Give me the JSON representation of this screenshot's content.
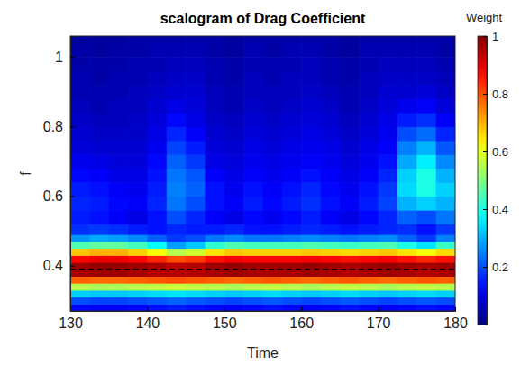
{
  "chart_data": {
    "type": "heatmap",
    "title": "scalogram of Drag Coefficient",
    "x_label": "Time",
    "y_label": "f",
    "xlim": [
      130,
      180
    ],
    "xticks": [
      130,
      140,
      150,
      160,
      170,
      180
    ],
    "ylim": [
      0.27,
      1.06
    ],
    "yticks": [
      0.4,
      0.6,
      0.8,
      1
    ],
    "hline": 0.39,
    "line_style": "dashed",
    "x": [
      131.25,
      133.75,
      136.25,
      138.75,
      141.25,
      143.75,
      146.25,
      148.75,
      151.25,
      153.75,
      156.25,
      158.75,
      161.25,
      163.75,
      166.25,
      168.75,
      171.25,
      173.75,
      176.25,
      178.75
    ],
    "y": [
      0.28,
      0.3,
      0.32,
      0.34,
      0.36,
      0.38,
      0.4,
      0.42,
      0.44,
      0.46,
      0.48,
      0.5,
      0.54,
      0.58,
      0.62,
      0.66,
      0.7,
      0.74,
      0.78,
      0.82,
      0.86,
      0.9,
      0.94,
      0.98,
      1.02,
      1.06
    ],
    "z": [
      [
        0.13,
        0.12,
        0.12,
        0.13,
        0.14,
        0.15,
        0.14,
        0.13,
        0.12,
        0.13,
        0.14,
        0.13,
        0.12,
        0.13,
        0.14,
        0.13,
        0.12,
        0.13,
        0.14,
        0.13
      ],
      [
        0.2,
        0.19,
        0.19,
        0.2,
        0.21,
        0.22,
        0.21,
        0.2,
        0.19,
        0.2,
        0.21,
        0.2,
        0.19,
        0.2,
        0.21,
        0.2,
        0.19,
        0.2,
        0.21,
        0.2
      ],
      [
        0.33,
        0.32,
        0.32,
        0.33,
        0.34,
        0.35,
        0.34,
        0.33,
        0.32,
        0.33,
        0.34,
        0.33,
        0.32,
        0.33,
        0.34,
        0.33,
        0.32,
        0.33,
        0.34,
        0.33
      ],
      [
        0.55,
        0.54,
        0.54,
        0.55,
        0.56,
        0.57,
        0.56,
        0.55,
        0.54,
        0.55,
        0.56,
        0.55,
        0.54,
        0.55,
        0.56,
        0.55,
        0.54,
        0.55,
        0.56,
        0.55
      ],
      [
        0.78,
        0.77,
        0.77,
        0.78,
        0.79,
        0.8,
        0.79,
        0.78,
        0.77,
        0.78,
        0.79,
        0.78,
        0.77,
        0.78,
        0.79,
        0.78,
        0.77,
        0.78,
        0.79,
        0.78
      ],
      [
        0.96,
        0.97,
        0.97,
        0.96,
        0.95,
        0.95,
        0.95,
        0.96,
        0.97,
        0.96,
        0.96,
        0.96,
        0.97,
        0.96,
        0.95,
        0.96,
        0.97,
        0.96,
        0.95,
        0.96
      ],
      [
        0.97,
        0.98,
        0.98,
        0.97,
        0.96,
        0.94,
        0.95,
        0.97,
        0.98,
        0.97,
        0.97,
        0.97,
        0.98,
        0.97,
        0.96,
        0.97,
        0.98,
        0.97,
        0.96,
        0.97
      ],
      [
        0.87,
        0.89,
        0.89,
        0.87,
        0.84,
        0.8,
        0.82,
        0.86,
        0.88,
        0.87,
        0.87,
        0.87,
        0.88,
        0.87,
        0.86,
        0.87,
        0.88,
        0.86,
        0.84,
        0.86
      ],
      [
        0.68,
        0.7,
        0.7,
        0.67,
        0.62,
        0.55,
        0.58,
        0.65,
        0.68,
        0.67,
        0.67,
        0.67,
        0.68,
        0.67,
        0.66,
        0.67,
        0.68,
        0.65,
        0.62,
        0.66
      ],
      [
        0.45,
        0.47,
        0.47,
        0.44,
        0.38,
        0.28,
        0.32,
        0.42,
        0.45,
        0.44,
        0.44,
        0.44,
        0.45,
        0.44,
        0.43,
        0.44,
        0.45,
        0.4,
        0.35,
        0.43
      ],
      [
        0.27,
        0.29,
        0.28,
        0.26,
        0.22,
        0.18,
        0.2,
        0.24,
        0.26,
        0.24,
        0.24,
        0.25,
        0.26,
        0.25,
        0.24,
        0.25,
        0.26,
        0.22,
        0.18,
        0.25
      ],
      [
        0.17,
        0.18,
        0.17,
        0.15,
        0.14,
        0.16,
        0.15,
        0.15,
        0.16,
        0.14,
        0.14,
        0.15,
        0.16,
        0.15,
        0.14,
        0.15,
        0.16,
        0.17,
        0.14,
        0.18
      ],
      [
        0.15,
        0.14,
        0.12,
        0.1,
        0.14,
        0.2,
        0.16,
        0.12,
        0.1,
        0.13,
        0.11,
        0.13,
        0.15,
        0.12,
        0.1,
        0.13,
        0.16,
        0.22,
        0.2,
        0.24
      ],
      [
        0.16,
        0.15,
        0.13,
        0.12,
        0.16,
        0.24,
        0.2,
        0.14,
        0.12,
        0.15,
        0.13,
        0.15,
        0.17,
        0.14,
        0.12,
        0.15,
        0.19,
        0.3,
        0.33,
        0.3
      ],
      [
        0.15,
        0.14,
        0.12,
        0.11,
        0.15,
        0.25,
        0.22,
        0.14,
        0.11,
        0.14,
        0.12,
        0.14,
        0.16,
        0.13,
        0.11,
        0.14,
        0.18,
        0.34,
        0.4,
        0.33
      ],
      [
        0.13,
        0.12,
        0.1,
        0.1,
        0.14,
        0.24,
        0.21,
        0.12,
        0.1,
        0.12,
        0.11,
        0.12,
        0.14,
        0.12,
        0.1,
        0.12,
        0.16,
        0.33,
        0.4,
        0.3
      ],
      [
        0.11,
        0.1,
        0.09,
        0.09,
        0.13,
        0.22,
        0.18,
        0.1,
        0.09,
        0.11,
        0.1,
        0.11,
        0.12,
        0.11,
        0.09,
        0.11,
        0.14,
        0.29,
        0.36,
        0.26
      ],
      [
        0.09,
        0.08,
        0.08,
        0.08,
        0.11,
        0.19,
        0.15,
        0.09,
        0.08,
        0.1,
        0.09,
        0.1,
        0.11,
        0.1,
        0.08,
        0.1,
        0.12,
        0.25,
        0.3,
        0.21
      ],
      [
        0.08,
        0.07,
        0.07,
        0.07,
        0.1,
        0.16,
        0.12,
        0.08,
        0.07,
        0.09,
        0.08,
        0.09,
        0.1,
        0.09,
        0.07,
        0.09,
        0.11,
        0.2,
        0.23,
        0.16
      ],
      [
        0.07,
        0.06,
        0.06,
        0.07,
        0.09,
        0.13,
        0.1,
        0.07,
        0.06,
        0.08,
        0.07,
        0.08,
        0.09,
        0.08,
        0.06,
        0.08,
        0.1,
        0.15,
        0.17,
        0.12
      ],
      [
        0.06,
        0.05,
        0.06,
        0.06,
        0.08,
        0.1,
        0.09,
        0.06,
        0.05,
        0.07,
        0.06,
        0.07,
        0.08,
        0.07,
        0.05,
        0.07,
        0.09,
        0.11,
        0.12,
        0.09
      ],
      [
        0.05,
        0.05,
        0.05,
        0.06,
        0.07,
        0.08,
        0.08,
        0.06,
        0.05,
        0.06,
        0.06,
        0.06,
        0.07,
        0.06,
        0.05,
        0.06,
        0.08,
        0.08,
        0.09,
        0.07
      ],
      [
        0.05,
        0.04,
        0.05,
        0.05,
        0.06,
        0.07,
        0.07,
        0.05,
        0.04,
        0.06,
        0.05,
        0.06,
        0.06,
        0.05,
        0.04,
        0.06,
        0.07,
        0.07,
        0.07,
        0.06
      ],
      [
        0.04,
        0.04,
        0.04,
        0.05,
        0.05,
        0.06,
        0.06,
        0.05,
        0.04,
        0.05,
        0.05,
        0.05,
        0.06,
        0.05,
        0.04,
        0.05,
        0.06,
        0.06,
        0.06,
        0.05
      ],
      [
        0.04,
        0.03,
        0.04,
        0.04,
        0.05,
        0.05,
        0.05,
        0.04,
        0.03,
        0.05,
        0.04,
        0.05,
        0.05,
        0.04,
        0.03,
        0.05,
        0.05,
        0.05,
        0.05,
        0.04
      ],
      [
        0.03,
        0.03,
        0.03,
        0.04,
        0.04,
        0.04,
        0.04,
        0.04,
        0.03,
        0.04,
        0.04,
        0.04,
        0.04,
        0.04,
        0.03,
        0.04,
        0.04,
        0.04,
        0.04,
        0.04
      ]
    ],
    "colorbar": {
      "label": "Weight",
      "range": [
        0,
        1
      ],
      "ticks": [
        0.2,
        0.4,
        0.6,
        0.8,
        1
      ]
    }
  }
}
